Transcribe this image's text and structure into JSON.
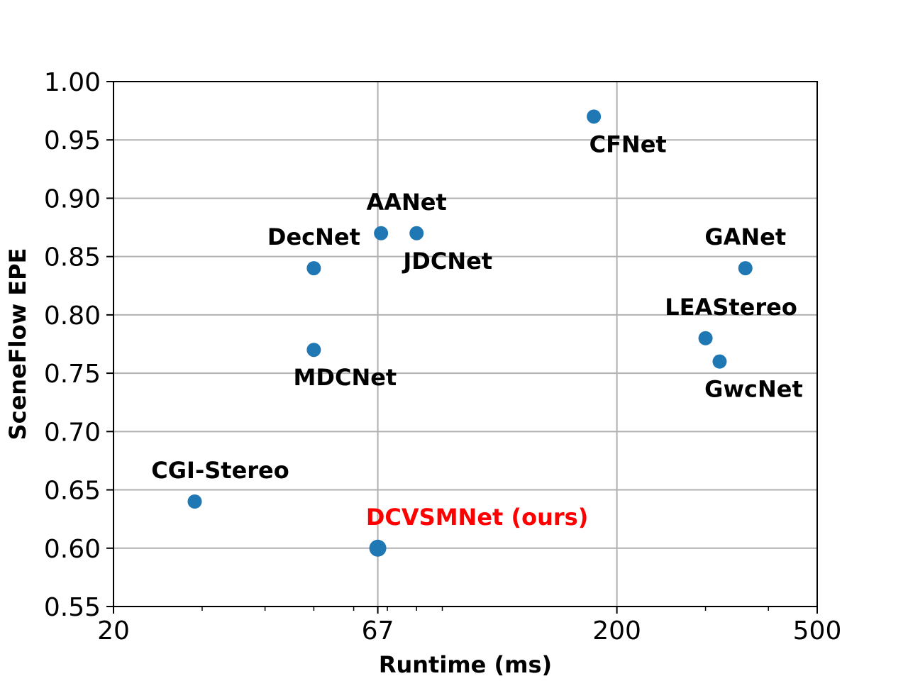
{
  "chart_data": {
    "type": "scatter",
    "xlabel": "Runtime (ms)",
    "ylabel": "SceneFlow EPE",
    "xscale": "log",
    "xlim": [
      20,
      500
    ],
    "ylim": [
      0.55,
      1.0
    ],
    "grid": true,
    "xticks": [
      20,
      67,
      200,
      500
    ],
    "xtick_labels": [
      "20",
      "67",
      "200",
      "500"
    ],
    "yticks": [
      0.55,
      0.6,
      0.65,
      0.7,
      0.75,
      0.8,
      0.85,
      0.9,
      0.95,
      1.0
    ],
    "ytick_labels": [
      "0.55",
      "0.60",
      "0.65",
      "0.70",
      "0.75",
      "0.80",
      "0.85",
      "0.90",
      "0.95",
      "1.00"
    ],
    "marker_color": "#1f77b4",
    "highlight_color": "#ff0000",
    "points": [
      {
        "name": "CFNet",
        "x": 180,
        "y": 0.97,
        "label_pos": "below"
      },
      {
        "name": "AANet",
        "x": 68,
        "y": 0.87,
        "label_pos": "above-right"
      },
      {
        "name": "JDCNet",
        "x": 80,
        "y": 0.87,
        "label_pos": "below-right"
      },
      {
        "name": "DecNet",
        "x": 50,
        "y": 0.84,
        "label_pos": "above"
      },
      {
        "name": "GANet",
        "x": 360,
        "y": 0.84,
        "label_pos": "above"
      },
      {
        "name": "LEAStereo",
        "x": 300,
        "y": 0.78,
        "label_pos": "above-right"
      },
      {
        "name": "GwcNet",
        "x": 320,
        "y": 0.76,
        "label_pos": "below"
      },
      {
        "name": "MDCNet",
        "x": 50,
        "y": 0.77,
        "label_pos": "below-right"
      },
      {
        "name": "CGI-Stereo",
        "x": 29,
        "y": 0.64,
        "label_pos": "above-right"
      },
      {
        "name": "DCVSMNet (ours)",
        "x": 67,
        "y": 0.6,
        "label_pos": "above-right",
        "highlight": true
      }
    ]
  }
}
